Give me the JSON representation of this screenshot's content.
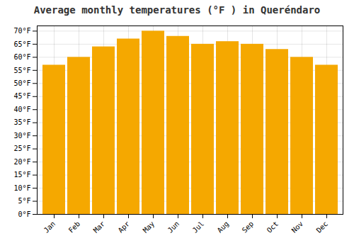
{
  "chart_data": {
    "type": "bar",
    "title": "Average monthly temperatures (°F ) in Queréndaro",
    "categories": [
      "Jan",
      "Feb",
      "Mar",
      "Apr",
      "May",
      "Jun",
      "Jul",
      "Aug",
      "Sep",
      "Oct",
      "Nov",
      "Dec"
    ],
    "values": [
      57,
      60,
      64,
      67,
      70,
      68,
      65,
      66,
      65,
      63,
      60,
      57
    ],
    "color": "#F5A800",
    "ylim": [
      0,
      72
    ],
    "yticks": [
      {
        "value": 0,
        "label": "0°F"
      },
      {
        "value": 5,
        "label": "5°F"
      },
      {
        "value": 10,
        "label": "10°F"
      },
      {
        "value": 15,
        "label": "15°F"
      },
      {
        "value": 20,
        "label": "20°F"
      },
      {
        "value": 25,
        "label": "25°F"
      },
      {
        "value": 30,
        "label": "30°F"
      },
      {
        "value": 35,
        "label": "35°F"
      },
      {
        "value": 40,
        "label": "40°F"
      },
      {
        "value": 45,
        "label": "45°F"
      },
      {
        "value": 50,
        "label": "50°F"
      },
      {
        "value": 55,
        "label": "55°F"
      },
      {
        "value": 60,
        "label": "60°F"
      },
      {
        "value": 65,
        "label": "65°F"
      },
      {
        "value": 70,
        "label": "70°F"
      }
    ],
    "grid": true
  }
}
